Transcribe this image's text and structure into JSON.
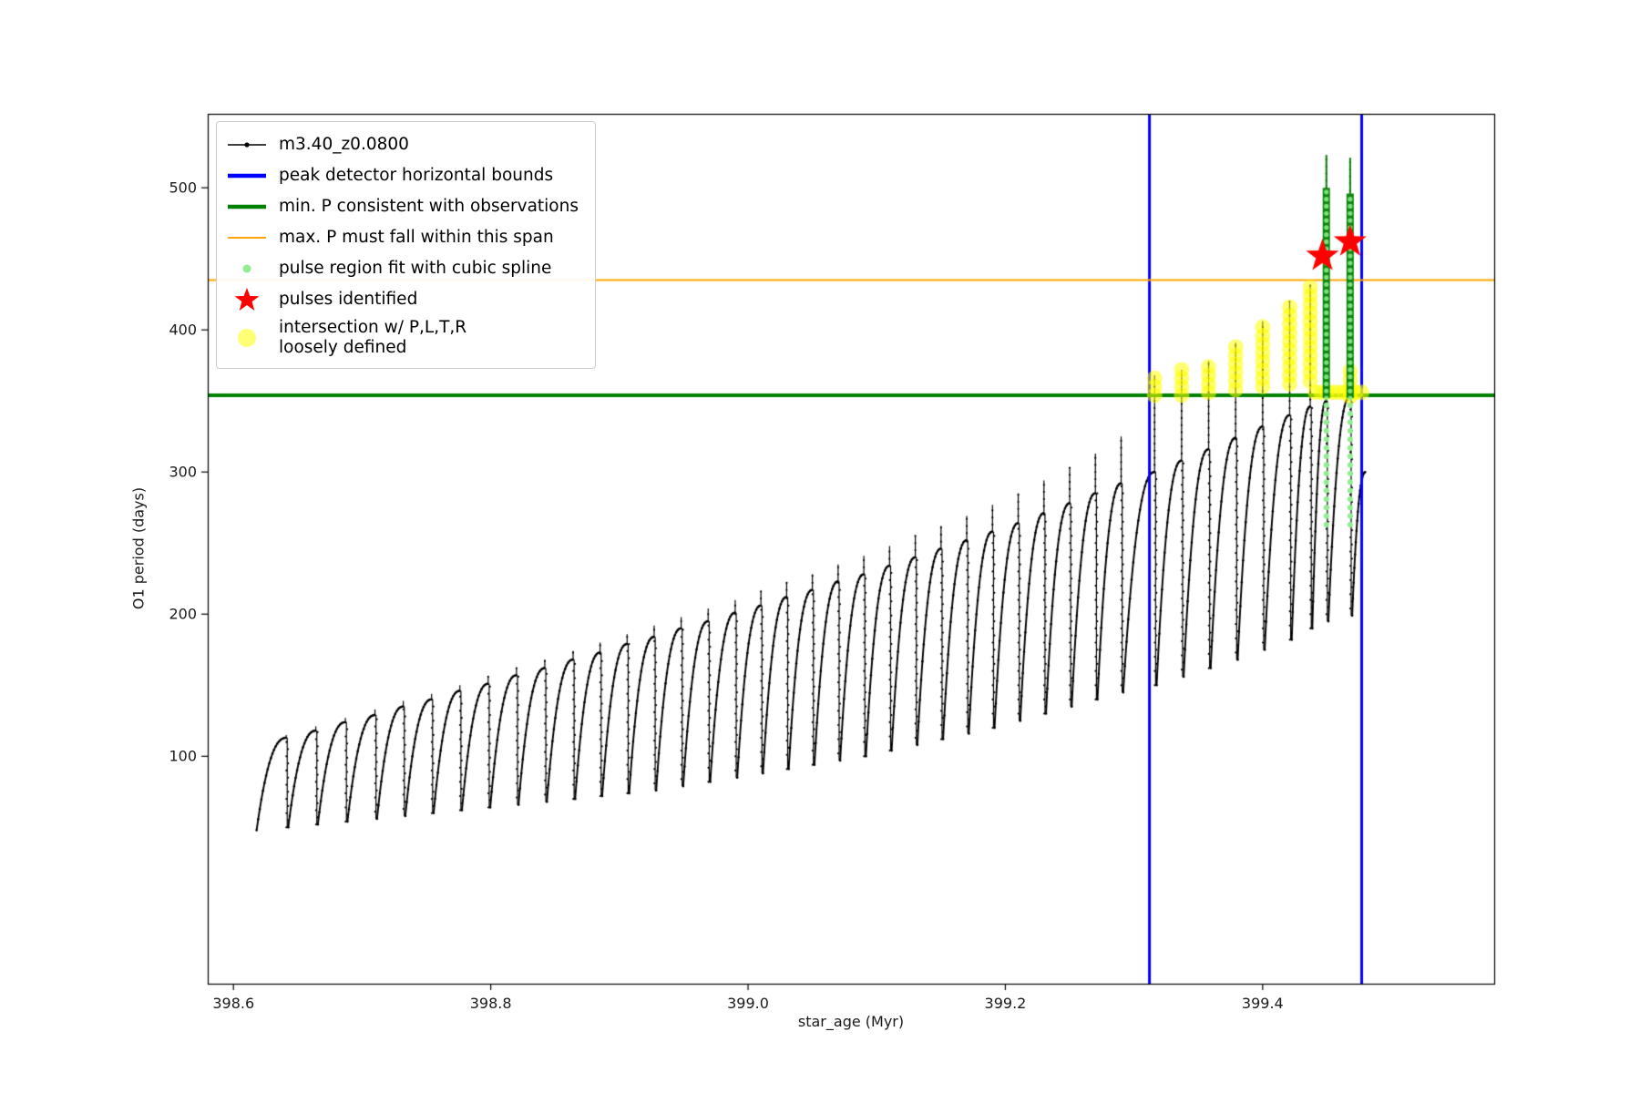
{
  "chart_data": {
    "type": "line",
    "title": "",
    "xlabel": "star_age (Myr)",
    "ylabel": "O1 period (days)",
    "xlim": [
      398.58,
      399.58
    ],
    "ylim": [
      -60,
      552
    ],
    "x_ticks": [
      398.6,
      398.8,
      399.0,
      399.2,
      399.4
    ],
    "x_tick_labels": [
      "398.6",
      "398.8",
      "399.0",
      "399.2",
      "399.4"
    ],
    "y_ticks": [
      100,
      200,
      300,
      400,
      500
    ],
    "y_tick_labels": [
      "100",
      "200",
      "300",
      "400",
      "500"
    ],
    "grid": false,
    "legend_position": "upper left",
    "series_name": "m3.40_z0.0800",
    "series_color": "#000000",
    "series_start": 398.618,
    "pulses": [
      [
        398.641,
        48,
        113,
        115
      ],
      [
        398.664,
        50,
        118,
        121
      ],
      [
        398.687,
        52,
        124,
        127
      ],
      [
        398.71,
        54,
        129,
        133
      ],
      [
        398.732,
        56,
        135,
        139
      ],
      [
        398.754,
        58,
        140,
        144
      ],
      [
        398.776,
        60,
        146,
        150
      ],
      [
        398.798,
        62,
        151,
        156
      ],
      [
        398.82,
        64,
        157,
        162
      ],
      [
        398.842,
        66,
        162,
        168
      ],
      [
        398.864,
        68,
        168,
        174
      ],
      [
        398.885,
        70,
        173,
        180
      ],
      [
        398.906,
        72,
        179,
        186
      ],
      [
        398.927,
        74,
        184,
        192
      ],
      [
        398.948,
        76,
        190,
        198
      ],
      [
        398.969,
        79,
        195,
        204
      ],
      [
        398.99,
        82,
        201,
        210
      ],
      [
        399.01,
        85,
        206,
        216
      ],
      [
        399.03,
        88,
        212,
        222
      ],
      [
        399.05,
        91,
        217,
        228
      ],
      [
        399.07,
        94,
        223,
        235
      ],
      [
        399.09,
        97,
        228,
        241
      ],
      [
        399.11,
        100,
        234,
        248
      ],
      [
        399.13,
        104,
        240,
        255
      ],
      [
        399.15,
        108,
        246,
        262
      ],
      [
        399.17,
        112,
        252,
        269
      ],
      [
        399.19,
        116,
        258,
        277
      ],
      [
        399.21,
        120,
        264,
        285
      ],
      [
        399.23,
        125,
        271,
        294
      ],
      [
        399.25,
        130,
        278,
        303
      ],
      [
        399.27,
        135,
        285,
        313
      ],
      [
        399.29,
        140,
        292,
        325
      ],
      [
        399.316,
        145,
        300,
        368
      ],
      [
        399.337,
        150,
        308,
        372
      ],
      [
        399.358,
        156,
        316,
        378
      ],
      [
        399.379,
        162,
        324,
        391
      ],
      [
        399.4,
        168,
        332,
        406
      ],
      [
        399.421,
        175,
        340,
        420
      ],
      [
        399.437,
        182,
        346,
        432
      ],
      [
        399.4495,
        190,
        350,
        523
      ],
      [
        399.468,
        195,
        353,
        521
      ],
      [
        399.48,
        199,
        300,
        300
      ]
    ],
    "vlines": {
      "label": "peak detector horizontal bounds",
      "color": "#0000ff",
      "width": 3,
      "x": [
        399.312,
        399.477
      ]
    },
    "hlines": [
      {
        "label": "min. P consistent with observations",
        "y": 354,
        "color": "#008000",
        "width": 4
      },
      {
        "label": "max. P must fall within this span",
        "y": 435,
        "color": "#ffa500",
        "width": 2
      }
    ],
    "spline_columns": [
      {
        "x": 399.4495,
        "y_dots_lo": 263,
        "y_dots_hi": 352,
        "y_bar_lo": 352,
        "y_bar_hi": 500,
        "y_tip": 523
      },
      {
        "x": 399.468,
        "y_dots_lo": 263,
        "y_dots_hi": 352,
        "y_bar_lo": 352,
        "y_bar_hi": 496,
        "y_tip": 521
      }
    ],
    "stars": [
      {
        "x": 399.4465,
        "y": 452
      },
      {
        "x": 399.468,
        "y": 462
      }
    ],
    "yellow_segments": [
      {
        "x": 399.316,
        "y0": 354,
        "y1": 368
      },
      {
        "x": 399.337,
        "y0": 354,
        "y1": 372
      },
      {
        "x": 399.358,
        "y0": 356,
        "y1": 378
      },
      {
        "x": 399.379,
        "y0": 358,
        "y1": 391
      },
      {
        "x": 399.4,
        "y0": 360,
        "y1": 406
      },
      {
        "x": 399.421,
        "y0": 362,
        "y1": 420
      },
      {
        "x": 399.437,
        "y0": 364,
        "y1": 432
      },
      {
        "x": 399.468,
        "y0": 353,
        "y1": 372
      }
    ],
    "yellow_band": {
      "y": 356,
      "x0": 399.441,
      "x1": 399.479
    }
  },
  "legend": {
    "entries": [
      {
        "label": "m3.40_z0.0800",
        "type": "line-dot",
        "color": "#000000"
      },
      {
        "label": "peak detector horizontal bounds",
        "type": "thick-line",
        "color": "#0000ff"
      },
      {
        "label": "min. P consistent with observations",
        "type": "thick-line",
        "color": "#008000"
      },
      {
        "label": "max. P must fall within this span",
        "type": "line",
        "color": "#ffa500"
      },
      {
        "label": "pulse region fit with cubic spline",
        "type": "dot",
        "color": "#90ee90"
      },
      {
        "label": "pulses identified",
        "type": "star",
        "color": "#ff0000"
      },
      {
        "label": "intersection w/ P,L,T,R\nloosely defined",
        "type": "big-dot",
        "color": "#ffff00"
      }
    ]
  }
}
